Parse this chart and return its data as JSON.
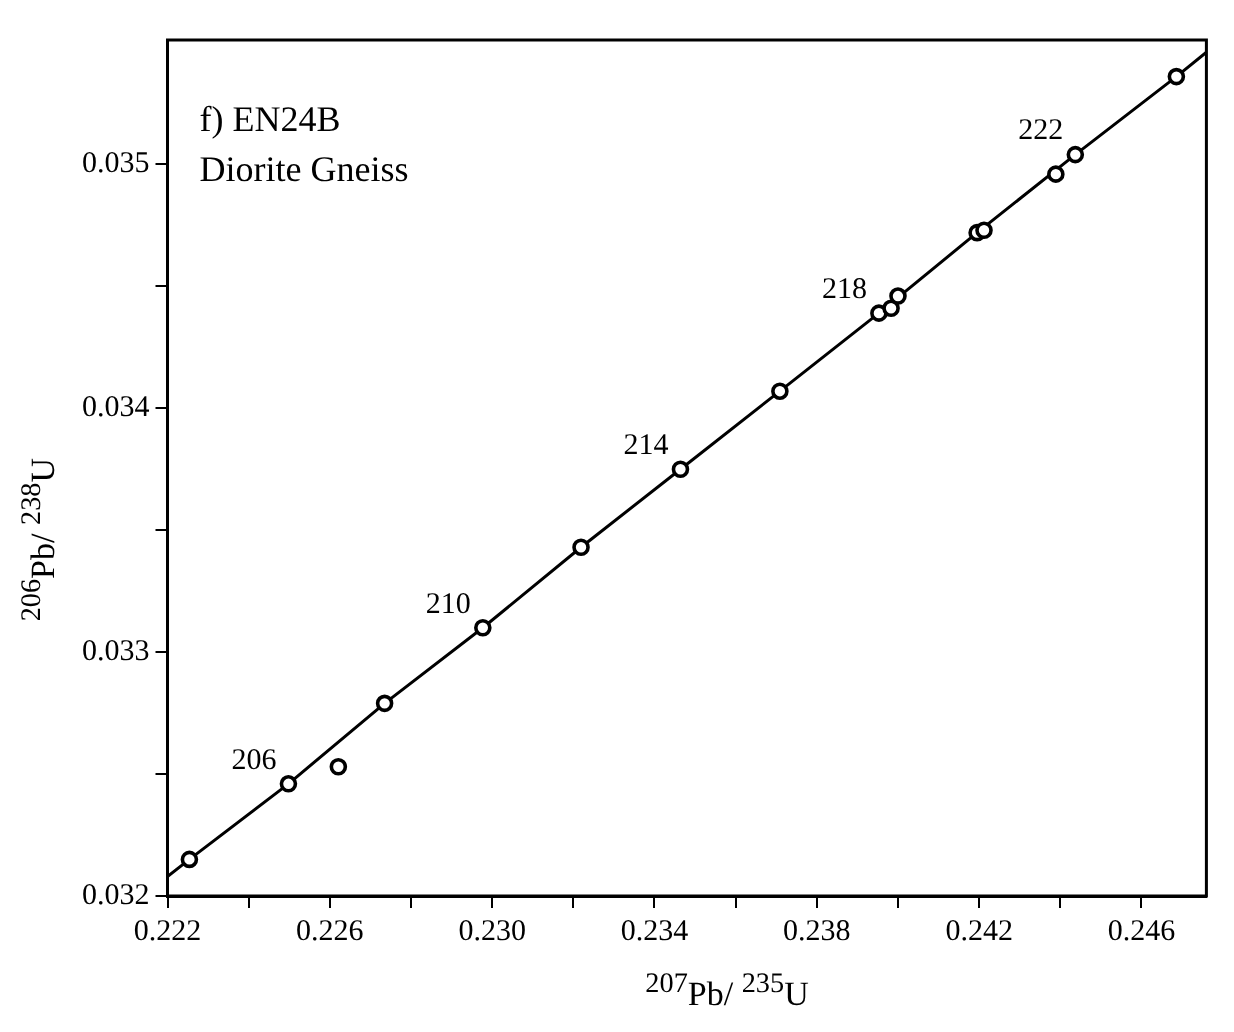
{
  "chart_data": {
    "type": "scatter",
    "title": "f) EN24B",
    "subtitle": "Diorite Gneiss",
    "xlabel": "$^{207}$Pb/ $^{235}$U",
    "ylabel": "$^{206}$Pb/ $^{238}$U",
    "xlim": [
      0.222,
      0.2476
    ],
    "ylim": [
      0.032,
      0.03551
    ],
    "xticks": [
      0.222,
      {
        "value": 0.224,
        "label": null
      },
      0.226,
      {
        "value": 0.228,
        "label": null
      },
      {
        "value": 0.23,
        "label": "0.230"
      },
      {
        "value": 0.232,
        "label": null
      },
      0.234,
      {
        "value": 0.236,
        "label": null
      },
      0.238,
      {
        "value": 0.24,
        "label": null
      },
      0.242,
      {
        "value": 0.244,
        "label": null
      },
      0.246
    ],
    "yticks": [
      0.032,
      {
        "value": 0.0325,
        "label": null
      },
      0.033,
      {
        "value": 0.0335,
        "label": null
      },
      0.034,
      {
        "value": 0.0345,
        "label": null
      },
      0.035
    ],
    "grid": false,
    "series": [
      {
        "type": "line",
        "color": "#000000",
        "marker": "none",
        "x": [
          0.222,
          0.22254,
          0.22498,
          0.22735,
          0.22977,
          0.23219,
          0.23464,
          0.23709,
          0.23953,
          0.24195,
          0.24437,
          0.24686,
          0.2476
        ],
        "values": [
          0.03208,
          0.03215,
          0.03246,
          0.03279,
          0.0331,
          0.03343,
          0.03375,
          0.03407,
          0.03439,
          0.03472,
          0.03504,
          0.03536,
          0.03546
        ]
      },
      {
        "type": "scatter",
        "color": "#000000",
        "marker": "circle",
        "x": [
          0.22254,
          0.22498,
          0.22735,
          0.22977,
          0.23219,
          0.23464,
          0.23709,
          0.23953,
          0.24195,
          0.24437,
          0.24686
        ],
        "values": [
          0.03215,
          0.03246,
          0.03279,
          0.0331,
          0.03343,
          0.03375,
          0.03407,
          0.03439,
          0.03472,
          0.03504,
          0.03536
        ]
      },
      {
        "type": "scatter",
        "color": "#000000",
        "marker": "circle",
        "x": [
          0.22621,
          0.23983,
          0.24,
          0.24212,
          0.24389
        ],
        "values": [
          0.03253,
          0.03441,
          0.03446,
          0.03473,
          0.03496
        ]
      }
    ],
    "annotations": [
      {
        "text": "206",
        "x": 0.22498,
        "y": 0.03246
      },
      {
        "text": "210",
        "x": 0.22977,
        "y": 0.0331
      },
      {
        "text": "214",
        "x": 0.23464,
        "y": 0.03375
      },
      {
        "text": "218",
        "x": 0.23953,
        "y": 0.03439
      },
      {
        "text": "222",
        "x": 0.24437,
        "y": 0.03504
      }
    ]
  }
}
